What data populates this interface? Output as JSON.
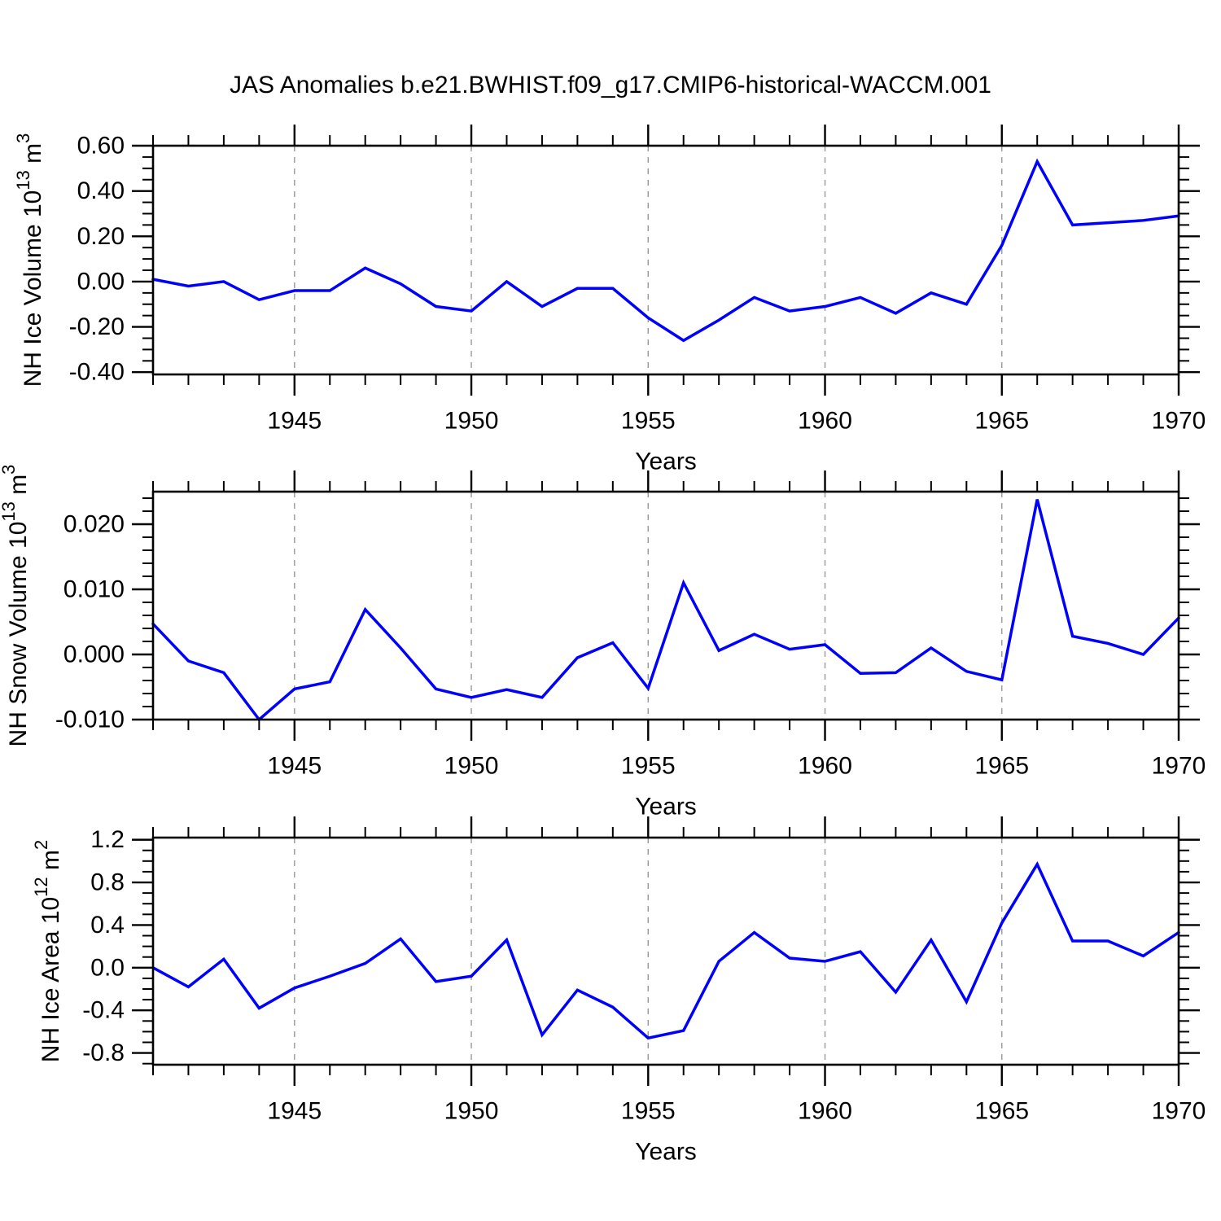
{
  "title": "JAS Anomalies b.e21.BWHIST.f09_g17.CMIP6-historical-WACCM.001",
  "colors": {
    "line": "#0000ff",
    "grid": "#999999",
    "axis": "#000000",
    "background": "#ffffff",
    "text": "#000000"
  },
  "chart_data": [
    {
      "type": "line",
      "name": "nh-ice-volume",
      "ylabel": "NH Ice Volume 10¹³ m³",
      "ylabel_parts": [
        {
          "t": "NH Ice Volume 10"
        },
        {
          "t": "13",
          "sup": true
        },
        {
          "t": " m"
        },
        {
          "t": "3",
          "sup": true
        }
      ],
      "xlabel": "Years",
      "xlim": [
        1941,
        1970
      ],
      "ylim": [
        -0.41,
        0.6
      ],
      "grid": "dashed-vertical",
      "grid_at": [
        1945,
        1950,
        1955,
        1960,
        1965
      ],
      "xticks": [
        {
          "v": 1945,
          "label": "1945"
        },
        {
          "v": 1950,
          "label": "1950"
        },
        {
          "v": 1955,
          "label": "1955"
        },
        {
          "v": 1960,
          "label": "1960"
        },
        {
          "v": 1965,
          "label": "1965"
        },
        {
          "v": 1970,
          "label": "1970"
        }
      ],
      "yticks": [
        {
          "v": 0.6,
          "label": "0.60"
        },
        {
          "v": 0.4,
          "label": "0.40"
        },
        {
          "v": 0.2,
          "label": "0.20"
        },
        {
          "v": 0.0,
          "label": "0.00"
        },
        {
          "v": -0.2,
          "label": "-0.20"
        },
        {
          "v": -0.4,
          "label": "-0.40"
        }
      ],
      "yminor_step": 0.05,
      "x": [
        1941,
        1942,
        1943,
        1944,
        1945,
        1946,
        1947,
        1948,
        1949,
        1950,
        1951,
        1952,
        1953,
        1954,
        1955,
        1956,
        1957,
        1958,
        1959,
        1960,
        1961,
        1962,
        1963,
        1964,
        1965,
        1966,
        1967,
        1968,
        1969,
        1970
      ],
      "values": [
        0.01,
        -0.02,
        0.0,
        -0.08,
        -0.04,
        -0.04,
        0.06,
        -0.01,
        -0.11,
        -0.13,
        0.0,
        -0.11,
        -0.03,
        -0.03,
        -0.16,
        -0.26,
        -0.17,
        -0.07,
        -0.13,
        -0.11,
        -0.07,
        -0.14,
        -0.05,
        -0.1,
        0.16,
        0.53,
        0.25,
        0.26,
        0.27,
        0.29
      ]
    },
    {
      "type": "line",
      "name": "nh-snow-volume",
      "ylabel": "NH Snow Volume 10¹³ m³",
      "ylabel_parts": [
        {
          "t": "NH Snow Volume 10"
        },
        {
          "t": "13",
          "sup": true
        },
        {
          "t": " m"
        },
        {
          "t": "3",
          "sup": true
        }
      ],
      "xlabel": "Years",
      "xlim": [
        1941,
        1970
      ],
      "ylim": [
        -0.01,
        0.025
      ],
      "grid": "dashed-vertical",
      "grid_at": [
        1945,
        1950,
        1955,
        1960,
        1965
      ],
      "xticks": [
        {
          "v": 1945,
          "label": "1945"
        },
        {
          "v": 1950,
          "label": "1950"
        },
        {
          "v": 1955,
          "label": "1955"
        },
        {
          "v": 1960,
          "label": "1960"
        },
        {
          "v": 1965,
          "label": "1965"
        },
        {
          "v": 1970,
          "label": "1970"
        }
      ],
      "yticks": [
        {
          "v": 0.02,
          "label": "0.020"
        },
        {
          "v": 0.01,
          "label": "0.010"
        },
        {
          "v": 0.0,
          "label": "0.000"
        },
        {
          "v": -0.01,
          "label": "-0.010"
        }
      ],
      "yminor_step": 0.002,
      "x": [
        1941,
        1942,
        1943,
        1944,
        1945,
        1946,
        1947,
        1948,
        1949,
        1950,
        1951,
        1952,
        1953,
        1954,
        1955,
        1956,
        1957,
        1958,
        1959,
        1960,
        1961,
        1962,
        1963,
        1964,
        1965,
        1966,
        1967,
        1968,
        1969,
        1970
      ],
      "values": [
        0.0047,
        -0.001,
        -0.0028,
        -0.01,
        -0.0053,
        -0.0042,
        0.0069,
        0.001,
        -0.0053,
        -0.0066,
        -0.0054,
        -0.0066,
        -0.0005,
        0.0018,
        -0.0052,
        0.011,
        0.0006,
        0.0031,
        0.0008,
        0.0015,
        -0.0029,
        -0.0028,
        0.001,
        -0.0026,
        -0.0039,
        0.0238,
        0.0028,
        0.0017,
        0.0,
        0.0056
      ]
    },
    {
      "type": "line",
      "name": "nh-ice-area",
      "ylabel": "NH Ice Area 10¹² m²",
      "ylabel_parts": [
        {
          "t": "NH Ice Area 10"
        },
        {
          "t": "12",
          "sup": true
        },
        {
          "t": " m"
        },
        {
          "t": "2",
          "sup": true
        }
      ],
      "xlabel": "Years",
      "xlim": [
        1941,
        1970
      ],
      "ylim": [
        -0.91,
        1.22
      ],
      "grid": "dashed-vertical",
      "grid_at": [
        1945,
        1950,
        1955,
        1960,
        1965
      ],
      "xticks": [
        {
          "v": 1945,
          "label": "1945"
        },
        {
          "v": 1950,
          "label": "1950"
        },
        {
          "v": 1955,
          "label": "1955"
        },
        {
          "v": 1960,
          "label": "1960"
        },
        {
          "v": 1965,
          "label": "1965"
        },
        {
          "v": 1970,
          "label": "1970"
        }
      ],
      "yticks": [
        {
          "v": 1.2,
          "label": "1.2"
        },
        {
          "v": 0.8,
          "label": "0.8"
        },
        {
          "v": 0.4,
          "label": "0.4"
        },
        {
          "v": 0.0,
          "label": "0.0"
        },
        {
          "v": -0.4,
          "label": "-0.4"
        },
        {
          "v": -0.8,
          "label": "-0.8"
        }
      ],
      "yminor_step": 0.1,
      "x": [
        1941,
        1942,
        1943,
        1944,
        1945,
        1946,
        1947,
        1948,
        1949,
        1950,
        1951,
        1952,
        1953,
        1954,
        1955,
        1956,
        1957,
        1958,
        1959,
        1960,
        1961,
        1962,
        1963,
        1964,
        1965,
        1966,
        1967,
        1968,
        1969,
        1970
      ],
      "values": [
        0.0,
        -0.18,
        0.08,
        -0.38,
        -0.19,
        -0.08,
        0.04,
        0.27,
        -0.13,
        -0.08,
        0.26,
        -0.63,
        -0.21,
        -0.37,
        -0.66,
        -0.59,
        0.06,
        0.33,
        0.09,
        0.06,
        0.15,
        -0.23,
        0.26,
        -0.32,
        0.42,
        0.97,
        0.25,
        0.25,
        0.11,
        0.33
      ]
    }
  ]
}
